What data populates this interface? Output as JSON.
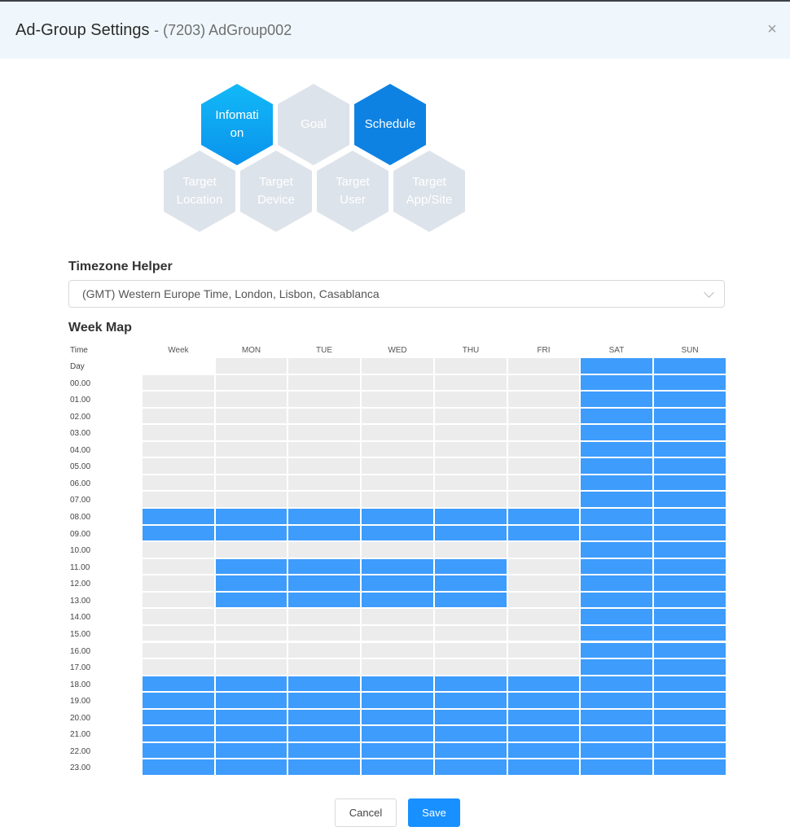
{
  "modal": {
    "title": "Ad-Group Settings",
    "subtitle": "- (7203) AdGroup002",
    "close_icon": "×"
  },
  "steps": [
    {
      "label": "Infomati on",
      "state": "done"
    },
    {
      "label": "Goal",
      "state": "inactive"
    },
    {
      "label": "Schedule",
      "state": "active"
    },
    {
      "label": "Target Location",
      "state": "inactive"
    },
    {
      "label": "Target Device",
      "state": "inactive"
    },
    {
      "label": "Target User",
      "state": "inactive"
    },
    {
      "label": "Target App/Site",
      "state": "inactive"
    }
  ],
  "timezone": {
    "label": "Timezone Helper",
    "value": "(GMT) Western Europe Time, London, Lisbon, Casablanca"
  },
  "weekmap": {
    "label": "Week Map",
    "time_label": "Time",
    "day_label": "Day",
    "columns": [
      "Week",
      "MON",
      "TUE",
      "WED",
      "THU",
      "FRI",
      "SAT",
      "SUN"
    ],
    "hours": [
      "00.00",
      "01.00",
      "02.00",
      "03.00",
      "04.00",
      "05.00",
      "06.00",
      "07.00",
      "08.00",
      "09.00",
      "10.00",
      "11.00",
      "12.00",
      "13.00",
      "14.00",
      "15.00",
      "16.00",
      "17.00",
      "18.00",
      "19.00",
      "20.00",
      "21.00",
      "22.00",
      "23.00"
    ],
    "header_selected": [
      false,
      false,
      false,
      false,
      false,
      false,
      true,
      true
    ],
    "selected": [
      "00000011",
      "00000011",
      "00000011",
      "00000011",
      "00000011",
      "00000011",
      "00000011",
      "00000011",
      "11111111",
      "11111111",
      "00000011",
      "01111011",
      "01111011",
      "01111011",
      "00000011",
      "00000011",
      "00000011",
      "00000011",
      "11111111",
      "11111111",
      "11111111",
      "11111111",
      "11111111",
      "11111111"
    ]
  },
  "colors": {
    "selected": "#3d9cfc",
    "unselected": "#ececec"
  },
  "footer": {
    "cancel": "Cancel",
    "save": "Save"
  }
}
